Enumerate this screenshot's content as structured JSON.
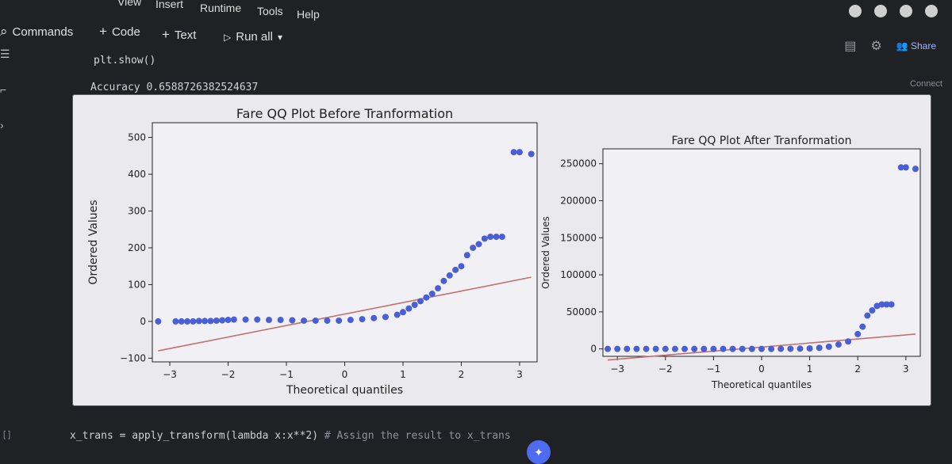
{
  "menu": [
    "View",
    "Insert",
    "Runtime",
    "Tools",
    "Help"
  ],
  "toolbar": {
    "commands_label": "Commands",
    "code_label": "Code",
    "text_label": "Text",
    "runall_label": "Run all"
  },
  "header_right": {
    "share_label": "Share",
    "connect_label": "Connect"
  },
  "cell": {
    "code": "plt.show()",
    "output": "Accuracy 0.6588726382524637",
    "next_code_prefix": "x_trans = apply_transform(lambda x:x**2)",
    "next_code_comment": "# Assign the result to x_trans",
    "marker": "[ ]"
  },
  "chart_data": [
    {
      "type": "scatter",
      "title": "Fare QQ Plot Before Tranformation",
      "xlabel": "Theoretical quantiles",
      "ylabel": "Ordered Values",
      "xlim": [
        -3.3,
        3.3
      ],
      "ylim": [
        -110,
        540
      ],
      "xticks": [
        -3,
        -2,
        -1,
        0,
        1,
        2,
        3
      ],
      "yticks": [
        -100,
        0,
        100,
        200,
        300,
        400,
        500
      ],
      "point_color": "#4b5fd4",
      "line_color": "#c27070",
      "fit_line": {
        "x": [
          -3.2,
          3.2
        ],
        "y": [
          -80,
          120
        ]
      },
      "points": [
        [
          -3.2,
          0
        ],
        [
          -2.9,
          0
        ],
        [
          -2.8,
          0
        ],
        [
          -2.7,
          0
        ],
        [
          -2.6,
          0
        ],
        [
          -2.5,
          1
        ],
        [
          -2.4,
          1
        ],
        [
          -2.3,
          1
        ],
        [
          -2.2,
          2
        ],
        [
          -2.1,
          3
        ],
        [
          -2.0,
          4
        ],
        [
          -1.9,
          5
        ],
        [
          -1.7,
          5
        ],
        [
          -1.5,
          5
        ],
        [
          -1.3,
          4
        ],
        [
          -1.1,
          4
        ],
        [
          -0.9,
          3
        ],
        [
          -0.7,
          2
        ],
        [
          -0.5,
          2
        ],
        [
          -0.3,
          2
        ],
        [
          -0.1,
          2
        ],
        [
          0.1,
          4
        ],
        [
          0.3,
          6
        ],
        [
          0.5,
          9
        ],
        [
          0.7,
          12
        ],
        [
          0.9,
          18
        ],
        [
          1.0,
          25
        ],
        [
          1.1,
          35
        ],
        [
          1.2,
          45
        ],
        [
          1.3,
          55
        ],
        [
          1.4,
          65
        ],
        [
          1.5,
          75
        ],
        [
          1.6,
          90
        ],
        [
          1.7,
          110
        ],
        [
          1.8,
          125
        ],
        [
          1.9,
          140
        ],
        [
          2.0,
          150
        ],
        [
          2.1,
          180
        ],
        [
          2.2,
          200
        ],
        [
          2.3,
          210
        ],
        [
          2.4,
          225
        ],
        [
          2.5,
          230
        ],
        [
          2.6,
          230
        ],
        [
          2.7,
          230
        ],
        [
          2.9,
          460
        ],
        [
          3.0,
          460
        ],
        [
          3.2,
          455
        ]
      ]
    },
    {
      "type": "scatter",
      "title": "Fare QQ Plot After Tranformation",
      "xlabel": "Theoretical quantiles",
      "ylabel": "Ordered Values",
      "xlim": [
        -3.3,
        3.3
      ],
      "ylim": [
        -10000,
        270000
      ],
      "xticks": [
        -3,
        -2,
        -1,
        0,
        1,
        2,
        3
      ],
      "yticks": [
        0,
        50000,
        100000,
        150000,
        200000,
        250000
      ],
      "point_color": "#4b5fd4",
      "line_color": "#c27070",
      "fit_line": {
        "x": [
          -3.2,
          3.2
        ],
        "y": [
          -15000,
          20000
        ]
      },
      "points": [
        [
          -3.2,
          0
        ],
        [
          -3.0,
          0
        ],
        [
          -2.8,
          0
        ],
        [
          -2.6,
          0
        ],
        [
          -2.4,
          0
        ],
        [
          -2.2,
          0
        ],
        [
          -2.0,
          0
        ],
        [
          -1.8,
          0
        ],
        [
          -1.6,
          0
        ],
        [
          -1.4,
          0
        ],
        [
          -1.2,
          0
        ],
        [
          -1.0,
          0
        ],
        [
          -0.8,
          0
        ],
        [
          -0.6,
          0
        ],
        [
          -0.4,
          0
        ],
        [
          -0.2,
          0
        ],
        [
          0.0,
          0
        ],
        [
          0.2,
          0
        ],
        [
          0.4,
          100
        ],
        [
          0.6,
          200
        ],
        [
          0.8,
          400
        ],
        [
          1.0,
          700
        ],
        [
          1.2,
          1500
        ],
        [
          1.4,
          3000
        ],
        [
          1.6,
          6000
        ],
        [
          1.8,
          10000
        ],
        [
          2.0,
          20000
        ],
        [
          2.1,
          30000
        ],
        [
          2.2,
          45000
        ],
        [
          2.3,
          52000
        ],
        [
          2.4,
          58000
        ],
        [
          2.5,
          60000
        ],
        [
          2.6,
          60000
        ],
        [
          2.7,
          60000
        ],
        [
          2.9,
          245000
        ],
        [
          3.0,
          245000
        ],
        [
          3.2,
          243000
        ]
      ]
    }
  ]
}
